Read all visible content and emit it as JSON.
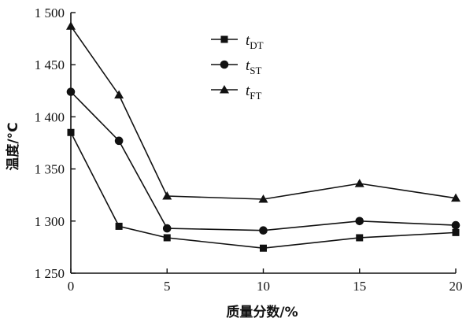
{
  "chart_data": {
    "type": "line",
    "xlabel": "质量分数/%",
    "ylabel": "温度/°C",
    "xlim": [
      0,
      20
    ],
    "ylim": [
      1250,
      1500
    ],
    "x_ticks": [
      {
        "value": 0,
        "label": "0"
      },
      {
        "value": 5,
        "label": "5"
      },
      {
        "value": 10,
        "label": "10"
      },
      {
        "value": 15,
        "label": "15"
      },
      {
        "value": 20,
        "label": "20"
      }
    ],
    "y_ticks": [
      {
        "value": 1250,
        "label": "1 250"
      },
      {
        "value": 1300,
        "label": "1 300"
      },
      {
        "value": 1350,
        "label": "1 350"
      },
      {
        "value": 1400,
        "label": "1 400"
      },
      {
        "value": 1450,
        "label": "1 450"
      },
      {
        "value": 1500,
        "label": "1 500"
      }
    ],
    "grid": false,
    "legend_position": "top-center",
    "series": [
      {
        "name": "tDT",
        "name_main": "t",
        "name_sub": "DT",
        "marker": "square",
        "x": [
          0,
          2.5,
          5,
          10,
          15,
          20
        ],
        "values": [
          1385,
          1295,
          1284,
          1274,
          1284,
          1289
        ]
      },
      {
        "name": "tST",
        "name_main": "t",
        "name_sub": "ST",
        "marker": "circle",
        "x": [
          0,
          2.5,
          5,
          10,
          15,
          20
        ],
        "values": [
          1424,
          1377,
          1293,
          1291,
          1300,
          1296
        ]
      },
      {
        "name": "tFT",
        "name_main": "t",
        "name_sub": "FT",
        "marker": "triangle",
        "x": [
          0,
          2.5,
          5,
          10,
          15,
          20
        ],
        "values": [
          1487,
          1421,
          1324,
          1321,
          1336,
          1322
        ]
      }
    ],
    "color": "#111111"
  }
}
